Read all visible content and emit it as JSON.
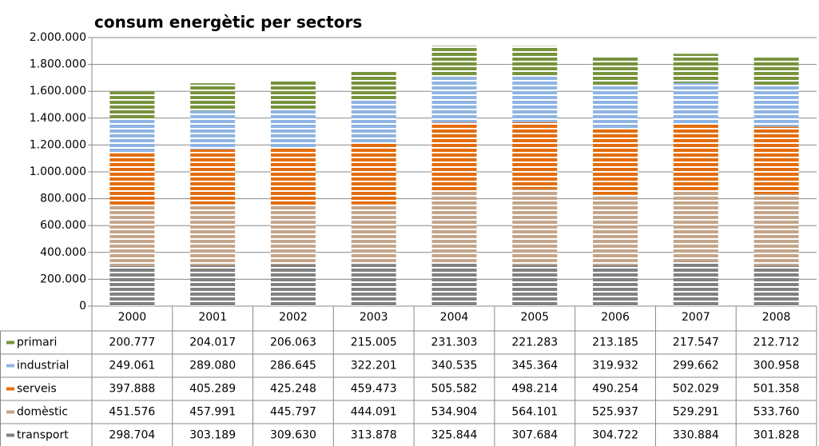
{
  "chart_data": {
    "type": "stacked_bar",
    "title": "consum energètic per sectors",
    "categories": [
      "2000",
      "2001",
      "2002",
      "2003",
      "2004",
      "2005",
      "2006",
      "2007",
      "2008"
    ],
    "series": [
      {
        "name": "primari",
        "color": "#77933c",
        "values": [
          200777,
          204017,
          206063,
          215005,
          231303,
          221283,
          213185,
          217547,
          212712
        ],
        "value_labels": [
          "200.777",
          "204.017",
          "206.063",
          "215.005",
          "231.303",
          "221.283",
          "213.185",
          "217.547",
          "212.712"
        ]
      },
      {
        "name": "industrial",
        "color": "#8eb4e3",
        "values": [
          249061,
          289080,
          286645,
          322201,
          340535,
          345364,
          319932,
          299662,
          300958
        ],
        "value_labels": [
          "249.061",
          "289.080",
          "286.645",
          "322.201",
          "340.535",
          "345.364",
          "319.932",
          "299.662",
          "300.958"
        ]
      },
      {
        "name": "serveis",
        "color": "#e46c0a",
        "values": [
          397888,
          405289,
          425248,
          459473,
          505582,
          498214,
          490254,
          502029,
          501358
        ],
        "value_labels": [
          "397.888",
          "405.289",
          "425.248",
          "459.473",
          "505.582",
          "498.214",
          "490.254",
          "502.029",
          "501.358"
        ]
      },
      {
        "name": "domèstic",
        "color": "#c4a58a",
        "values": [
          451576,
          457991,
          445797,
          444091,
          534904,
          564101,
          525937,
          529291,
          533760
        ],
        "value_labels": [
          "451.576",
          "457.991",
          "445.797",
          "444.091",
          "534.904",
          "564.101",
          "525.937",
          "529.291",
          "533.760"
        ]
      },
      {
        "name": "transport",
        "color": "#808080",
        "values": [
          298704,
          303189,
          309630,
          313878,
          325844,
          307684,
          304722,
          330884,
          301828
        ],
        "value_labels": [
          "298.704",
          "303.189",
          "309.630",
          "313.878",
          "325.844",
          "307.684",
          "304.722",
          "330.884",
          "301.828"
        ]
      }
    ],
    "ylim": [
      0,
      2000000
    ],
    "yticks": [
      0,
      {
        "value": 200000,
        "label": "200.000"
      },
      {
        "value": 400000,
        "label": "400.000"
      },
      {
        "value": 600000,
        "label": "600.000"
      },
      {
        "value": 800000,
        "label": "800.000"
      },
      {
        "value": 1000000,
        "label": "1.000.000"
      },
      {
        "value": 1200000,
        "label": "1.200.000"
      },
      {
        "value": 1400000,
        "label": "1.400.000"
      },
      {
        "value": 1600000,
        "label": "1.600.000"
      },
      {
        "value": 1800000,
        "label": "1.800.000"
      },
      {
        "value": 2000000,
        "label": "2.000.000"
      }
    ],
    "grid": true
  }
}
